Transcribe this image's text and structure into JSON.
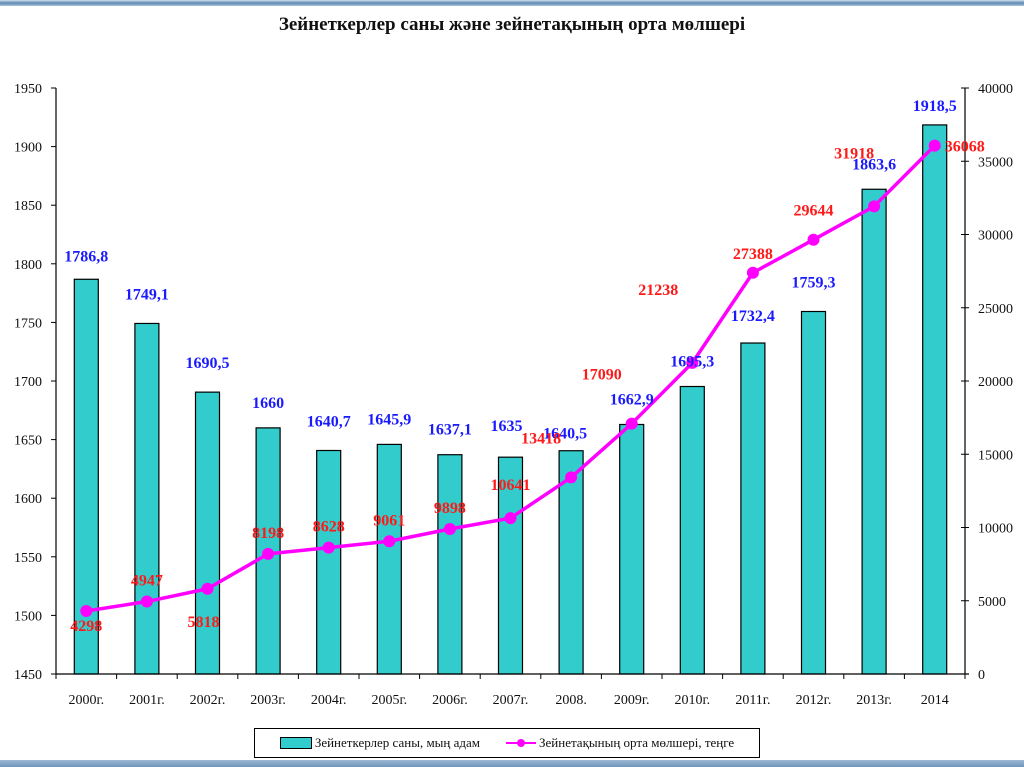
{
  "chart_data": {
    "type": "bar",
    "title": "Зейнеткерлер саны және зейнетақының орта мөлшері",
    "categories": [
      "2000г.",
      "2001г.",
      "2002г.",
      "2003г.",
      "2004г.",
      "2005г.",
      "2006г.",
      "2007г.",
      "2008.",
      "2009г.",
      "2010г.",
      "2011г.",
      "2012г.",
      "2013г.",
      "2014"
    ],
    "series": [
      {
        "name": "Зейнеткерлер саны, мың адам",
        "type": "bar",
        "axis": "left",
        "color": "#33cccc",
        "label_color": "#1a1aff",
        "values": [
          1786.8,
          1749.1,
          1690.5,
          1660,
          1640.7,
          1645.9,
          1637.1,
          1635,
          1640.5,
          1662.9,
          1695.3,
          1732.4,
          1759.3,
          1863.6,
          1918.5
        ],
        "labels": [
          "1786,8",
          "1749,1",
          "1690,5",
          "1660",
          "1640,7",
          "1645,9",
          "1637,1",
          "1635",
          "1640,5",
          "1662,9",
          "1695,3",
          "1732,4",
          "1759,3",
          "1863,6",
          "1918,5"
        ]
      },
      {
        "name": "Зейнетақының орта мөлшері, теңге",
        "type": "line",
        "axis": "right",
        "color": "#ff00ff",
        "label_color": "#ff1a1a",
        "values": [
          4298,
          4947,
          5818,
          8198,
          8628,
          9061,
          9898,
          10641,
          13418,
          17090,
          21238,
          27388,
          29644,
          31918,
          36068
        ],
        "labels": [
          "4298",
          "4947",
          "5818",
          "8198",
          "8628",
          "9061",
          "9898",
          "10641",
          "13418",
          "17090",
          "21238",
          "27388",
          "29644",
          "31918",
          "36068"
        ]
      }
    ],
    "y_left": {
      "range": [
        1450,
        1950
      ],
      "ticks": [
        1450,
        1500,
        1550,
        1600,
        1650,
        1700,
        1750,
        1800,
        1850,
        1900,
        1950
      ]
    },
    "y_right": {
      "range": [
        0,
        40000
      ],
      "ticks": [
        0,
        5000,
        10000,
        15000,
        20000,
        25000,
        30000,
        35000,
        40000
      ]
    },
    "xlabel": "",
    "ylabel": "",
    "grid": false,
    "legend_position": "bottom"
  }
}
